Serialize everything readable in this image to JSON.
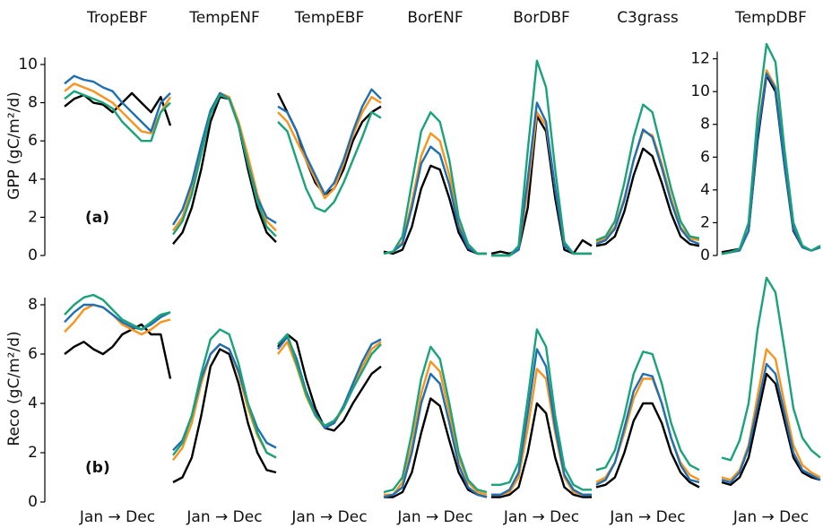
{
  "chart_data": [
    {
      "type": "line",
      "title": "TropEBF",
      "ylabel": "GPP (gC/m²/d)",
      "panel_label": "(a)",
      "ylim": [
        0,
        11.5
      ],
      "yticks": [
        0,
        2,
        4,
        6,
        8,
        10
      ],
      "series": [
        {
          "color": "#000000",
          "values": [
            7.8,
            8.2,
            8.4,
            8.0,
            7.9,
            7.5,
            8.0,
            8.5,
            8.0,
            7.5,
            8.3,
            6.8
          ]
        },
        {
          "color": "#f7941d",
          "values": [
            8.6,
            9.0,
            8.8,
            8.6,
            8.3,
            8.0,
            7.5,
            7.0,
            6.5,
            6.4,
            7.5,
            8.3
          ]
        },
        {
          "color": "#1f6fb4",
          "values": [
            9.0,
            9.4,
            9.2,
            9.1,
            8.8,
            8.6,
            8.0,
            7.5,
            7.0,
            6.5,
            8.0,
            8.5
          ]
        },
        {
          "color": "#1aa37a",
          "values": [
            8.2,
            8.6,
            8.4,
            8.2,
            8.0,
            7.7,
            7.0,
            6.5,
            6.0,
            6.0,
            7.5,
            8.0
          ]
        }
      ]
    },
    {
      "type": "line",
      "title": "TempENF",
      "ylim": [
        0,
        11.5
      ],
      "series": [
        {
          "color": "#000000",
          "values": [
            0.6,
            1.2,
            2.5,
            4.5,
            7.0,
            8.3,
            8.2,
            6.8,
            4.5,
            2.5,
            1.2,
            0.7
          ]
        },
        {
          "color": "#f7941d",
          "values": [
            1.3,
            2.0,
            3.5,
            5.5,
            7.5,
            8.5,
            8.3,
            7.0,
            5.2,
            3.2,
            1.8,
            1.3
          ]
        },
        {
          "color": "#1f6fb4",
          "values": [
            1.6,
            2.4,
            3.8,
            5.8,
            7.6,
            8.5,
            8.2,
            6.8,
            4.8,
            3.0,
            2.0,
            1.7
          ]
        },
        {
          "color": "#1aa37a",
          "values": [
            1.1,
            1.8,
            3.2,
            5.3,
            7.4,
            8.4,
            8.2,
            6.8,
            4.8,
            2.8,
            1.5,
            1.0
          ]
        }
      ]
    },
    {
      "type": "line",
      "title": "TempEBF",
      "ylim": [
        0,
        11.5
      ],
      "series": [
        {
          "color": "#000000",
          "values": [
            8.5,
            7.5,
            6.5,
            5.0,
            3.8,
            3.2,
            3.5,
            4.5,
            6.0,
            7.0,
            7.5,
            7.8
          ]
        },
        {
          "color": "#f7941d",
          "values": [
            7.5,
            7.0,
            6.0,
            5.0,
            4.0,
            3.0,
            3.5,
            4.8,
            6.3,
            7.5,
            8.3,
            8.0
          ]
        },
        {
          "color": "#1f6fb4",
          "values": [
            7.8,
            7.5,
            6.5,
            5.2,
            4.2,
            3.2,
            3.8,
            5.0,
            6.5,
            7.8,
            8.7,
            8.2
          ]
        },
        {
          "color": "#1aa37a",
          "values": [
            7.0,
            6.5,
            5.0,
            3.5,
            2.5,
            2.3,
            2.8,
            3.8,
            5.0,
            6.2,
            7.5,
            7.2
          ]
        }
      ]
    },
    {
      "type": "line",
      "title": "BorENF",
      "ylim": [
        0,
        11.5
      ],
      "series": [
        {
          "color": "#000000",
          "values": [
            0.2,
            0.1,
            0.3,
            1.5,
            3.5,
            4.7,
            4.5,
            3.0,
            1.2,
            0.3,
            0.1,
            0.1
          ]
        },
        {
          "color": "#f7941d",
          "values": [
            0.1,
            0.2,
            0.7,
            2.8,
            5.2,
            6.4,
            6.0,
            4.2,
            1.8,
            0.5,
            0.1,
            0.1
          ]
        },
        {
          "color": "#1f6fb4",
          "values": [
            0.1,
            0.2,
            0.6,
            2.5,
            4.8,
            5.7,
            5.3,
            3.7,
            1.5,
            0.4,
            0.1,
            0.1
          ]
        },
        {
          "color": "#1aa37a",
          "values": [
            0.1,
            0.2,
            1.0,
            3.8,
            6.5,
            7.5,
            7.0,
            5.0,
            2.0,
            0.6,
            0.1,
            0.1
          ]
        }
      ]
    },
    {
      "type": "line",
      "title": "BorDBF",
      "ylim": [
        0,
        11.5
      ],
      "series": [
        {
          "color": "#000000",
          "values": [
            0.1,
            0.2,
            0.1,
            0.3,
            2.5,
            7.3,
            6.5,
            3.0,
            0.3,
            0.1,
            0.8,
            0.5
          ]
        },
        {
          "color": "#f7941d",
          "values": [
            0.0,
            0.0,
            0.0,
            0.3,
            3.5,
            7.5,
            6.8,
            3.5,
            0.5,
            0.1,
            0.1,
            0.1
          ]
        },
        {
          "color": "#1f6fb4",
          "values": [
            0.0,
            0.0,
            0.0,
            0.3,
            4.0,
            8.0,
            7.0,
            3.5,
            0.5,
            0.1,
            0.1,
            0.1
          ]
        },
        {
          "color": "#1aa37a",
          "values": [
            0.0,
            0.0,
            0.0,
            0.5,
            5.5,
            10.2,
            8.8,
            4.5,
            0.7,
            0.1,
            0.1,
            0.1
          ]
        }
      ]
    },
    {
      "type": "line",
      "title": "C3grass",
      "ylim": [
        0,
        11.5
      ],
      "series": [
        {
          "color": "#000000",
          "values": [
            0.5,
            0.6,
            1.0,
            2.3,
            4.2,
            5.6,
            5.2,
            3.8,
            2.2,
            1.0,
            0.6,
            0.5
          ]
        },
        {
          "color": "#f7941d",
          "values": [
            0.7,
            0.9,
            1.5,
            3.0,
            5.0,
            6.5,
            6.3,
            4.8,
            3.0,
            1.5,
            0.9,
            0.8
          ]
        },
        {
          "color": "#1f6fb4",
          "values": [
            0.6,
            0.8,
            1.4,
            2.9,
            5.0,
            6.6,
            6.2,
            4.6,
            2.8,
            1.4,
            0.8,
            0.6
          ]
        },
        {
          "color": "#1aa37a",
          "values": [
            0.8,
            1.0,
            1.8,
            3.8,
            6.2,
            7.9,
            7.5,
            5.5,
            3.5,
            1.8,
            1.0,
            0.9
          ]
        }
      ]
    },
    {
      "type": "line",
      "title": "TempDBF",
      "ylim": [
        0,
        13.4
      ],
      "yticks": [
        0,
        2,
        4,
        6,
        8,
        10,
        12
      ],
      "series": [
        {
          "color": "#000000",
          "values": [
            0.2,
            0.3,
            0.4,
            1.5,
            7.0,
            11.0,
            10.0,
            5.5,
            1.5,
            0.5,
            0.3,
            0.5
          ]
        },
        {
          "color": "#f7941d",
          "values": [
            0.1,
            0.2,
            0.3,
            1.5,
            7.5,
            11.3,
            10.3,
            5.8,
            1.8,
            0.5,
            0.3,
            0.5
          ]
        },
        {
          "color": "#1f6fb4",
          "values": [
            0.1,
            0.2,
            0.3,
            1.5,
            7.3,
            11.1,
            10.2,
            5.6,
            1.6,
            0.5,
            0.3,
            0.5
          ]
        },
        {
          "color": "#1aa37a",
          "values": [
            0.1,
            0.2,
            0.4,
            2.0,
            8.5,
            12.9,
            11.8,
            6.5,
            2.0,
            0.6,
            0.3,
            0.6
          ]
        }
      ]
    },
    {
      "type": "line",
      "ylabel": "Reco (gC/m²/d)",
      "panel_label": "(b)",
      "xlabel": "Jan → Dec",
      "ylim": [
        0,
        9.2
      ],
      "yticks": [
        0,
        2,
        4,
        6,
        8
      ],
      "series": [
        {
          "color": "#000000",
          "values": [
            6.0,
            6.3,
            6.5,
            6.2,
            6.0,
            6.3,
            6.8,
            7.0,
            7.2,
            6.8,
            6.8,
            5.0
          ]
        },
        {
          "color": "#f7941d",
          "values": [
            6.9,
            7.3,
            7.8,
            8.0,
            7.9,
            7.6,
            7.2,
            7.0,
            6.8,
            7.0,
            7.3,
            7.4
          ]
        },
        {
          "color": "#1f6fb4",
          "values": [
            7.3,
            7.7,
            8.0,
            8.0,
            7.9,
            7.6,
            7.3,
            7.1,
            7.0,
            7.2,
            7.5,
            7.7
          ]
        },
        {
          "color": "#1aa37a",
          "values": [
            7.6,
            8.0,
            8.3,
            8.4,
            8.2,
            7.8,
            7.4,
            7.2,
            7.0,
            7.3,
            7.6,
            7.7
          ]
        }
      ]
    },
    {
      "type": "line",
      "xlabel": "Jan → Dec",
      "ylim": [
        0,
        9.2
      ],
      "series": [
        {
          "color": "#000000",
          "values": [
            0.8,
            1.0,
            1.8,
            3.5,
            5.5,
            6.2,
            6.0,
            4.8,
            3.2,
            2.0,
            1.3,
            1.2
          ]
        },
        {
          "color": "#f7941d",
          "values": [
            1.7,
            2.2,
            3.2,
            4.8,
            6.0,
            6.4,
            6.2,
            5.2,
            3.8,
            2.7,
            2.0,
            1.8
          ]
        },
        {
          "color": "#1f6fb4",
          "values": [
            2.1,
            2.5,
            3.5,
            5.0,
            6.0,
            6.4,
            6.2,
            5.3,
            4.0,
            3.0,
            2.4,
            2.2
          ]
        },
        {
          "color": "#1aa37a",
          "values": [
            1.9,
            2.4,
            3.5,
            5.2,
            6.6,
            7.0,
            6.8,
            5.6,
            4.0,
            2.8,
            2.0,
            1.8
          ]
        }
      ]
    },
    {
      "type": "line",
      "xlabel": "Jan → Dec",
      "ylim": [
        0,
        9.2
      ],
      "series": [
        {
          "color": "#000000",
          "values": [
            6.3,
            6.8,
            6.5,
            5.0,
            3.8,
            3.0,
            2.9,
            3.3,
            4.0,
            4.6,
            5.2,
            5.5
          ]
        },
        {
          "color": "#f7941d",
          "values": [
            6.0,
            6.5,
            5.5,
            4.3,
            3.5,
            3.0,
            3.2,
            3.8,
            4.6,
            5.5,
            6.2,
            6.5
          ]
        },
        {
          "color": "#1f6fb4",
          "values": [
            6.2,
            6.7,
            5.8,
            4.5,
            3.6,
            3.0,
            3.2,
            3.9,
            4.8,
            5.7,
            6.4,
            6.6
          ]
        },
        {
          "color": "#1aa37a",
          "values": [
            6.4,
            6.8,
            5.6,
            4.4,
            3.5,
            3.1,
            3.3,
            3.8,
            4.6,
            5.3,
            6.0,
            6.4
          ]
        }
      ]
    },
    {
      "type": "line",
      "xlabel": "Jan → Dec",
      "ylim": [
        0,
        9.2
      ],
      "series": [
        {
          "color": "#000000",
          "values": [
            0.2,
            0.2,
            0.4,
            1.2,
            2.8,
            4.2,
            3.9,
            2.5,
            1.2,
            0.5,
            0.3,
            0.2
          ]
        },
        {
          "color": "#f7941d",
          "values": [
            0.3,
            0.3,
            0.8,
            2.3,
            4.4,
            5.7,
            5.3,
            3.6,
            1.8,
            0.8,
            0.4,
            0.3
          ]
        },
        {
          "color": "#1f6fb4",
          "values": [
            0.2,
            0.3,
            0.6,
            2.0,
            4.0,
            5.2,
            4.8,
            3.2,
            1.5,
            0.6,
            0.3,
            0.2
          ]
        },
        {
          "color": "#1aa37a",
          "values": [
            0.4,
            0.5,
            1.0,
            2.8,
            5.0,
            6.3,
            5.8,
            4.0,
            2.0,
            0.9,
            0.5,
            0.4
          ]
        }
      ]
    },
    {
      "type": "line",
      "xlabel": "Jan → Dec",
      "ylim": [
        0,
        9.2
      ],
      "series": [
        {
          "color": "#000000",
          "values": [
            0.2,
            0.2,
            0.3,
            0.6,
            2.0,
            4.0,
            3.6,
            1.8,
            0.6,
            0.3,
            0.2,
            0.2
          ]
        },
        {
          "color": "#f7941d",
          "values": [
            0.3,
            0.3,
            0.4,
            1.0,
            3.0,
            5.4,
            5.0,
            2.8,
            1.0,
            0.4,
            0.3,
            0.3
          ]
        },
        {
          "color": "#1f6fb4",
          "values": [
            0.3,
            0.3,
            0.5,
            1.2,
            3.6,
            6.2,
            5.5,
            3.0,
            1.1,
            0.5,
            0.3,
            0.3
          ]
        },
        {
          "color": "#1aa37a",
          "values": [
            0.7,
            0.7,
            0.8,
            1.6,
            4.2,
            7.0,
            6.3,
            3.5,
            1.4,
            0.7,
            0.5,
            0.5
          ]
        }
      ]
    },
    {
      "type": "line",
      "xlabel": "Jan → Dec",
      "ylim": [
        0,
        9.2
      ],
      "series": [
        {
          "color": "#000000",
          "values": [
            0.6,
            0.7,
            1.0,
            2.0,
            3.3,
            4.0,
            4.0,
            3.2,
            2.0,
            1.2,
            0.8,
            0.6
          ]
        },
        {
          "color": "#f7941d",
          "values": [
            0.8,
            1.0,
            1.6,
            2.8,
            4.2,
            5.0,
            5.0,
            4.0,
            2.6,
            1.6,
            1.1,
            0.9
          ]
        },
        {
          "color": "#1f6fb4",
          "values": [
            0.7,
            0.9,
            1.6,
            3.0,
            4.5,
            5.2,
            5.1,
            4.0,
            2.6,
            1.5,
            0.9,
            0.8
          ]
        },
        {
          "color": "#1aa37a",
          "values": [
            1.3,
            1.4,
            2.1,
            3.5,
            5.2,
            6.1,
            6.0,
            4.8,
            3.2,
            2.1,
            1.5,
            1.3
          ]
        }
      ]
    },
    {
      "type": "line",
      "xlabel": "Jan → Dec",
      "ylim": [
        0,
        9.2
      ],
      "series": [
        {
          "color": "#000000",
          "values": [
            0.8,
            0.7,
            1.0,
            1.8,
            3.5,
            5.2,
            4.8,
            3.3,
            1.8,
            1.2,
            1.0,
            0.9
          ]
        },
        {
          "color": "#f7941d",
          "values": [
            1.0,
            0.9,
            1.3,
            2.3,
            4.3,
            6.2,
            5.8,
            4.0,
            2.3,
            1.5,
            1.2,
            1.0
          ]
        },
        {
          "color": "#1f6fb4",
          "values": [
            0.9,
            0.8,
            1.2,
            2.2,
            3.9,
            5.6,
            5.2,
            3.6,
            2.0,
            1.3,
            1.1,
            0.9
          ]
        },
        {
          "color": "#1aa37a",
          "values": [
            1.8,
            1.7,
            2.5,
            4.0,
            7.0,
            9.1,
            8.5,
            6.2,
            3.8,
            2.6,
            2.1,
            1.8
          ]
        }
      ]
    }
  ]
}
